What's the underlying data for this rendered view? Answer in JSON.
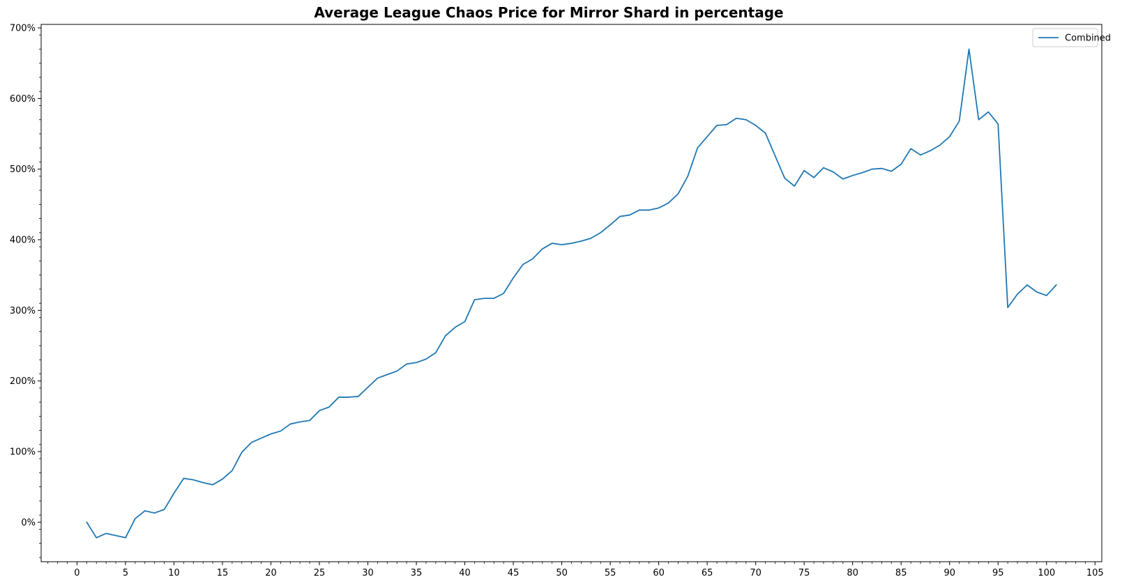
{
  "chart_data": {
    "type": "line",
    "title": "Average League Chaos Price for Mirror Shard in percentage",
    "xlabel": "",
    "ylabel": "",
    "xlim": [
      -3.7,
      105.7
    ],
    "ylim": [
      -56,
      705
    ],
    "x_ticks": [
      0,
      5,
      10,
      15,
      20,
      25,
      30,
      35,
      40,
      45,
      50,
      55,
      60,
      65,
      70,
      75,
      80,
      85,
      90,
      95,
      100,
      105
    ],
    "x_tick_labels": [
      "0",
      "5",
      "10",
      "15",
      "20",
      "25",
      "30",
      "35",
      "40",
      "45",
      "50",
      "55",
      "60",
      "65",
      "70",
      "75",
      "80",
      "85",
      "90",
      "95",
      "100",
      "105"
    ],
    "y_ticks": [
      0,
      100,
      200,
      300,
      400,
      500,
      600,
      700
    ],
    "y_tick_labels": [
      "0%",
      "100%",
      "200%",
      "300%",
      "400%",
      "500%",
      "600%",
      "700%"
    ],
    "grid": false,
    "legend_position": "top-right",
    "color": "#1f77b4",
    "series": [
      {
        "name": "Combined",
        "x": [
          1,
          2,
          3,
          4,
          5,
          6,
          7,
          8,
          9,
          10,
          11,
          12,
          13,
          14,
          15,
          16,
          17,
          18,
          19,
          20,
          21,
          22,
          23,
          24,
          25,
          26,
          27,
          28,
          29,
          30,
          31,
          32,
          33,
          34,
          35,
          36,
          37,
          38,
          39,
          40,
          41,
          42,
          43,
          44,
          45,
          46,
          47,
          48,
          49,
          50,
          51,
          52,
          53,
          54,
          55,
          56,
          57,
          58,
          59,
          60,
          61,
          62,
          63,
          64,
          65,
          66,
          67,
          68,
          69,
          70,
          71,
          72,
          73,
          74,
          75,
          76,
          77,
          78,
          79,
          80,
          81,
          82,
          83,
          84,
          85,
          86,
          87,
          88,
          89,
          90,
          91,
          92,
          93,
          94,
          95,
          96,
          97,
          98,
          99,
          100,
          101
        ],
        "y": [
          0,
          -22,
          -16,
          -19,
          -22,
          5,
          16,
          13,
          18,
          41,
          62,
          60,
          56,
          53,
          61,
          73,
          99,
          113,
          119,
          125,
          129,
          139,
          142,
          144,
          158,
          163,
          177,
          177,
          178,
          191,
          204,
          209,
          214,
          224,
          226,
          231,
          240,
          264,
          276,
          284,
          315,
          317,
          317,
          324,
          346,
          365,
          373,
          387,
          395,
          393,
          395,
          398,
          402,
          410,
          421,
          433,
          435,
          442,
          442,
          445,
          452,
          465,
          490,
          530,
          546,
          562,
          563,
          572,
          570,
          562,
          551,
          519,
          487,
          476,
          498,
          488,
          502,
          496,
          486,
          491,
          495,
          500,
          501,
          497,
          507,
          529,
          520,
          526,
          534,
          546,
          568,
          670,
          570,
          581,
          564,
          304,
          323,
          336,
          326,
          321,
          336
        ]
      }
    ]
  }
}
